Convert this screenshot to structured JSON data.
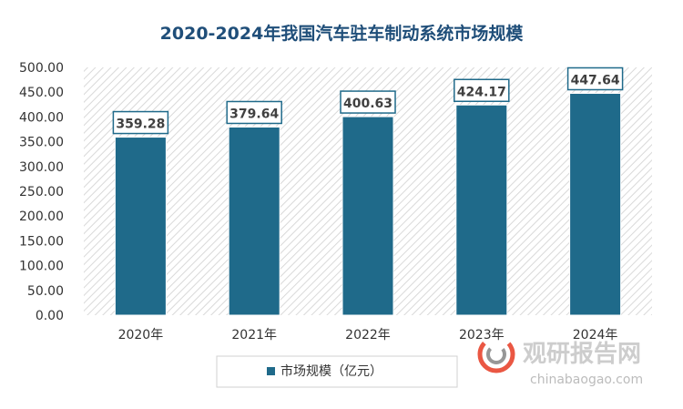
{
  "colors": {
    "bar": "#1f6a8a",
    "title": "#1f4e79",
    "axis_text": "#333333",
    "label_border": "#1f6a8a",
    "hatch": "#d9d9d9",
    "watermark_red": "#e8452f",
    "watermark_gray": "#8c8c8c"
  },
  "chart_data": {
    "type": "bar",
    "title": "2020-2024年我国汽车驻车制动系统市场规模",
    "categories": [
      "2020年",
      "2021年",
      "2022年",
      "2023年",
      "2024年"
    ],
    "series": [
      {
        "name": "市场规模（亿元）",
        "values": [
          359.28,
          379.64,
          400.63,
          424.17,
          447.64
        ]
      }
    ],
    "data_labels": [
      "359.28",
      "379.64",
      "400.63",
      "424.17",
      "447.64"
    ],
    "ylim": [
      0,
      500
    ],
    "yticks": [
      "0.00",
      "50.00",
      "100.00",
      "150.00",
      "200.00",
      "250.00",
      "300.00",
      "350.00",
      "400.00",
      "450.00",
      "500.00"
    ],
    "xlabel": "",
    "ylabel": "",
    "legend": "bottom-center",
    "grid": false
  },
  "watermark": {
    "brand": "观研报告网",
    "url": "chinabaogao.com",
    "icon": "ring-logo-icon"
  }
}
